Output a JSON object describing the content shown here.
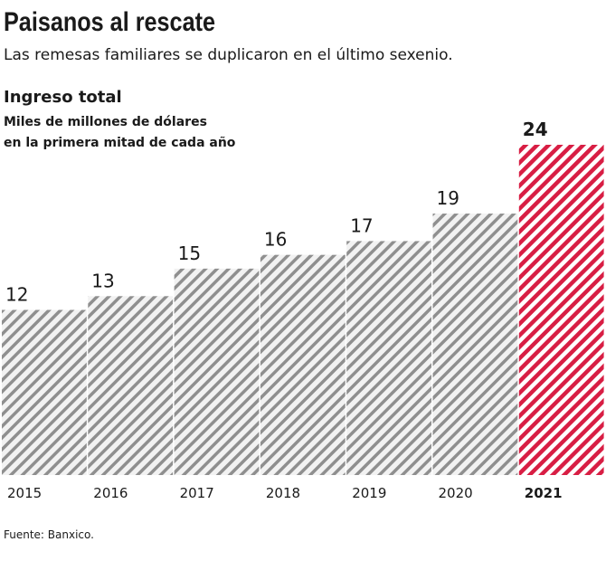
{
  "chart_data": {
    "type": "bar",
    "title": "Paisanos al rescate",
    "subtitle": "Las remesas familiares se duplicaron en el último sexenio.",
    "chart_title": "Ingreso total",
    "unit_lines": [
      "Miles de millones de dólares",
      "en la primera mitad de cada año"
    ],
    "categories": [
      "2015",
      "2016",
      "2017",
      "2018",
      "2019",
      "2020",
      "2021"
    ],
    "values": [
      12,
      13,
      15,
      16,
      17,
      19,
      24
    ],
    "colors": [
      "#8f8f8f",
      "#8f8f8f",
      "#8f8f8f",
      "#8f8f8f",
      "#8f8f8f",
      "#8f8f8f",
      "#d81e44"
    ],
    "highlight_index": 6,
    "source": "Fuente: Banxico."
  }
}
